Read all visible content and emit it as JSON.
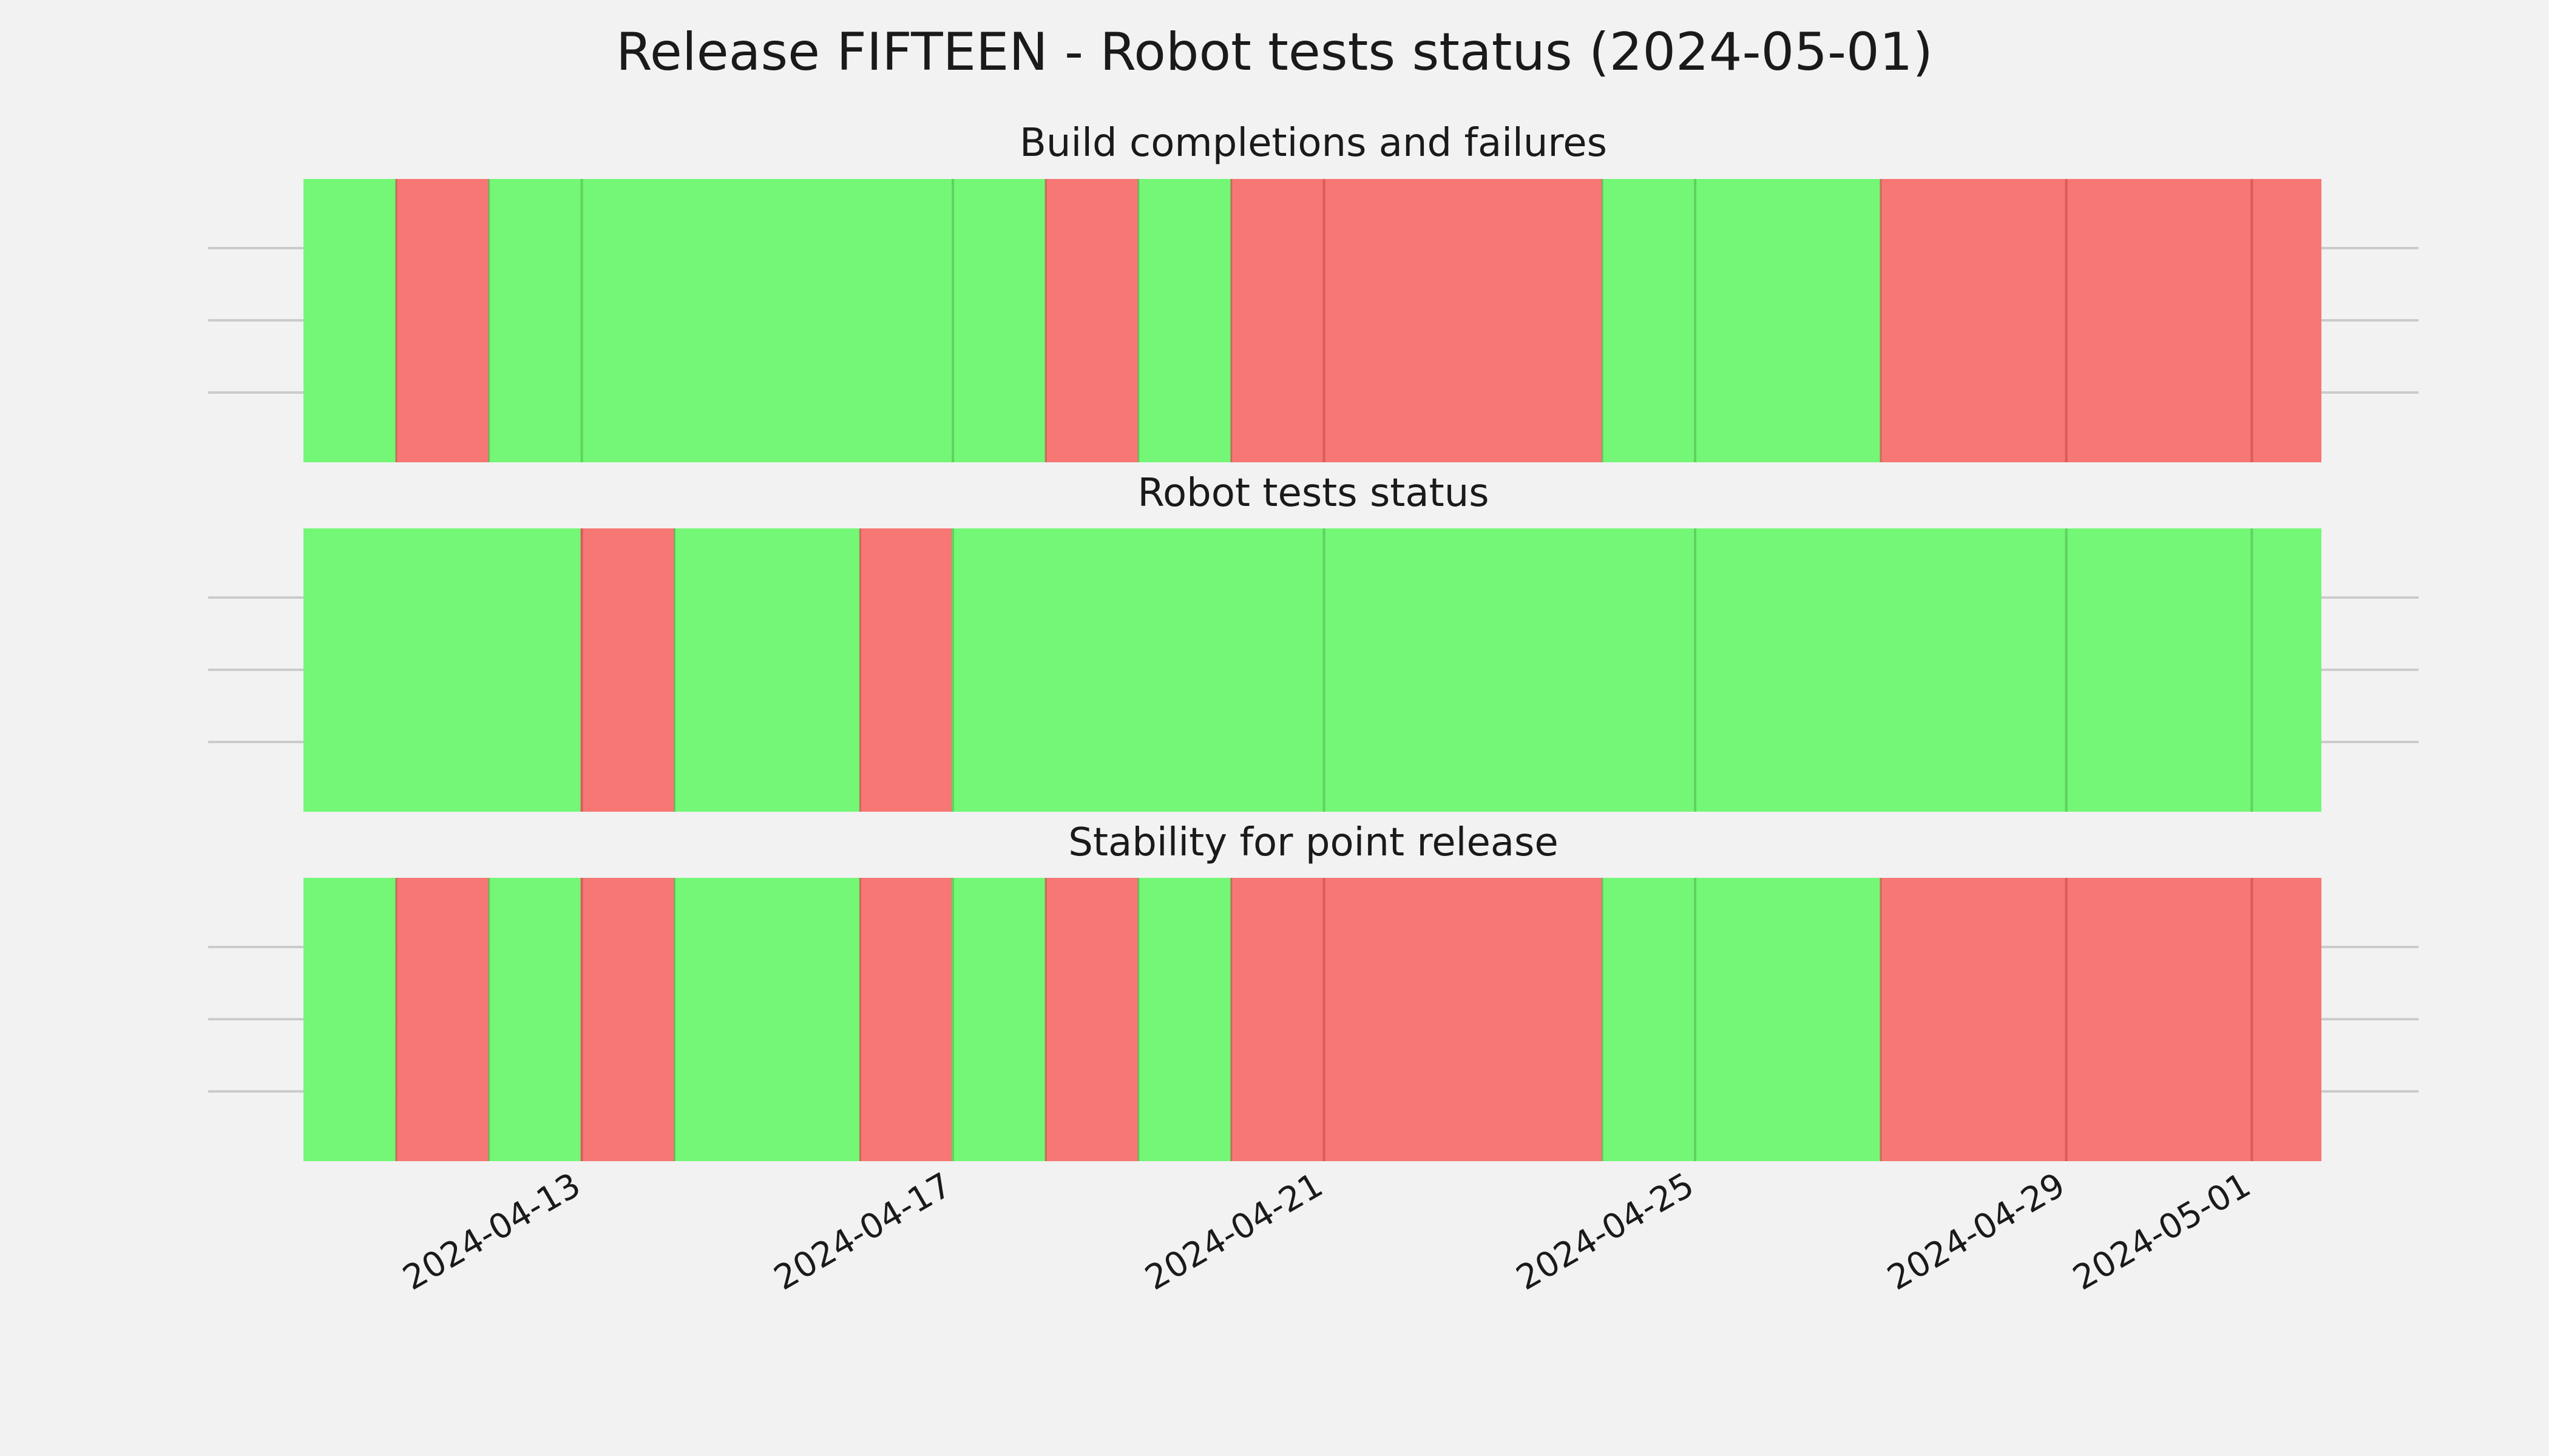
{
  "chart_data": {
    "type": "bar",
    "title": "Release FIFTEEN - Robot tests status (2024-05-01)",
    "x_type": "date",
    "x_range": [
      "2024-04-10T00:00",
      "2024-05-01T18:00"
    ],
    "xticks": [
      "2024-04-13",
      "2024-04-17",
      "2024-04-21",
      "2024-04-25",
      "2024-04-29",
      "2024-05-01"
    ],
    "grid": true,
    "colors": {
      "pass": "#74f776",
      "fail": "#f77774",
      "background": "#f2f2f2"
    },
    "panels": [
      {
        "title": "Build completions and failures",
        "days": [
          {
            "date": "2024-04-10",
            "status": "pass"
          },
          {
            "date": "2024-04-11",
            "status": "fail"
          },
          {
            "date": "2024-04-12",
            "status": "pass"
          },
          {
            "date": "2024-04-13",
            "status": "pass"
          },
          {
            "date": "2024-04-14",
            "status": "pass"
          },
          {
            "date": "2024-04-15",
            "status": "pass"
          },
          {
            "date": "2024-04-16",
            "status": "pass"
          },
          {
            "date": "2024-04-17",
            "status": "pass"
          },
          {
            "date": "2024-04-18",
            "status": "fail"
          },
          {
            "date": "2024-04-19",
            "status": "pass"
          },
          {
            "date": "2024-04-20",
            "status": "fail"
          },
          {
            "date": "2024-04-21",
            "status": "fail"
          },
          {
            "date": "2024-04-22",
            "status": "fail"
          },
          {
            "date": "2024-04-23",
            "status": "fail"
          },
          {
            "date": "2024-04-24",
            "status": "pass"
          },
          {
            "date": "2024-04-25",
            "status": "pass"
          },
          {
            "date": "2024-04-26",
            "status": "pass"
          },
          {
            "date": "2024-04-27",
            "status": "fail"
          },
          {
            "date": "2024-04-28",
            "status": "fail"
          },
          {
            "date": "2024-04-29",
            "status": "fail"
          },
          {
            "date": "2024-04-30",
            "status": "fail"
          },
          {
            "date": "2024-05-01",
            "status": "fail"
          }
        ]
      },
      {
        "title": "Robot tests status",
        "days": [
          {
            "date": "2024-04-10",
            "status": "pass"
          },
          {
            "date": "2024-04-11",
            "status": "pass"
          },
          {
            "date": "2024-04-12",
            "status": "pass"
          },
          {
            "date": "2024-04-13",
            "status": "fail"
          },
          {
            "date": "2024-04-14",
            "status": "pass"
          },
          {
            "date": "2024-04-15",
            "status": "pass"
          },
          {
            "date": "2024-04-16",
            "status": "fail"
          },
          {
            "date": "2024-04-17",
            "status": "pass"
          },
          {
            "date": "2024-04-18",
            "status": "pass"
          },
          {
            "date": "2024-04-19",
            "status": "pass"
          },
          {
            "date": "2024-04-20",
            "status": "pass"
          },
          {
            "date": "2024-04-21",
            "status": "pass"
          },
          {
            "date": "2024-04-22",
            "status": "pass"
          },
          {
            "date": "2024-04-23",
            "status": "pass"
          },
          {
            "date": "2024-04-24",
            "status": "pass"
          },
          {
            "date": "2024-04-25",
            "status": "pass"
          },
          {
            "date": "2024-04-26",
            "status": "pass"
          },
          {
            "date": "2024-04-27",
            "status": "pass"
          },
          {
            "date": "2024-04-28",
            "status": "pass"
          },
          {
            "date": "2024-04-29",
            "status": "pass"
          },
          {
            "date": "2024-04-30",
            "status": "pass"
          },
          {
            "date": "2024-05-01",
            "status": "pass"
          }
        ]
      },
      {
        "title": "Stability for point release",
        "days": [
          {
            "date": "2024-04-10",
            "status": "pass"
          },
          {
            "date": "2024-04-11",
            "status": "fail"
          },
          {
            "date": "2024-04-12",
            "status": "pass"
          },
          {
            "date": "2024-04-13",
            "status": "fail"
          },
          {
            "date": "2024-04-14",
            "status": "pass"
          },
          {
            "date": "2024-04-15",
            "status": "pass"
          },
          {
            "date": "2024-04-16",
            "status": "fail"
          },
          {
            "date": "2024-04-17",
            "status": "pass"
          },
          {
            "date": "2024-04-18",
            "status": "fail"
          },
          {
            "date": "2024-04-19",
            "status": "pass"
          },
          {
            "date": "2024-04-20",
            "status": "fail"
          },
          {
            "date": "2024-04-21",
            "status": "fail"
          },
          {
            "date": "2024-04-22",
            "status": "fail"
          },
          {
            "date": "2024-04-23",
            "status": "fail"
          },
          {
            "date": "2024-04-24",
            "status": "pass"
          },
          {
            "date": "2024-04-25",
            "status": "pass"
          },
          {
            "date": "2024-04-26",
            "status": "pass"
          },
          {
            "date": "2024-04-27",
            "status": "fail"
          },
          {
            "date": "2024-04-28",
            "status": "fail"
          },
          {
            "date": "2024-04-29",
            "status": "fail"
          },
          {
            "date": "2024-04-30",
            "status": "fail"
          },
          {
            "date": "2024-05-01",
            "status": "fail"
          }
        ]
      }
    ]
  }
}
